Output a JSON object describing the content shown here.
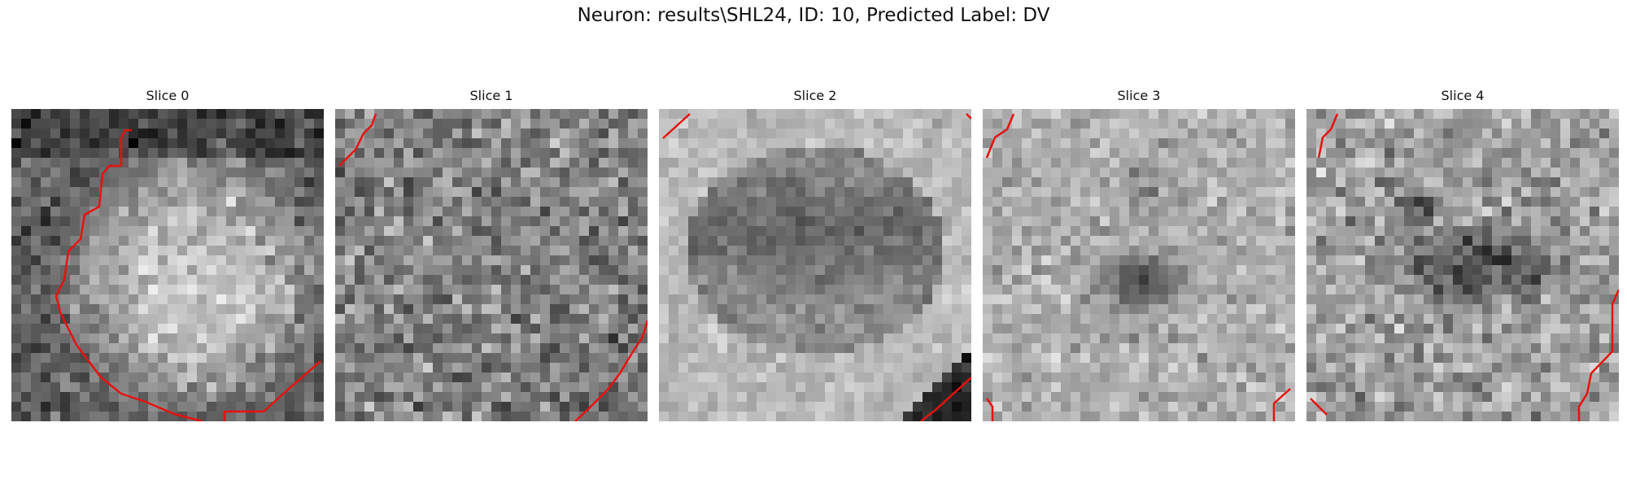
{
  "figure": {
    "title": "Neuron: results\\SHL24, ID: 10, Predicted Label: DV"
  },
  "colors": {
    "contour": "#e8110f",
    "background": "#ffffff"
  },
  "slices": [
    {
      "title": "Slice 0"
    },
    {
      "title": "Slice 1"
    },
    {
      "title": "Slice 2"
    },
    {
      "title": "Slice 3"
    },
    {
      "title": "Slice 4"
    }
  ]
}
